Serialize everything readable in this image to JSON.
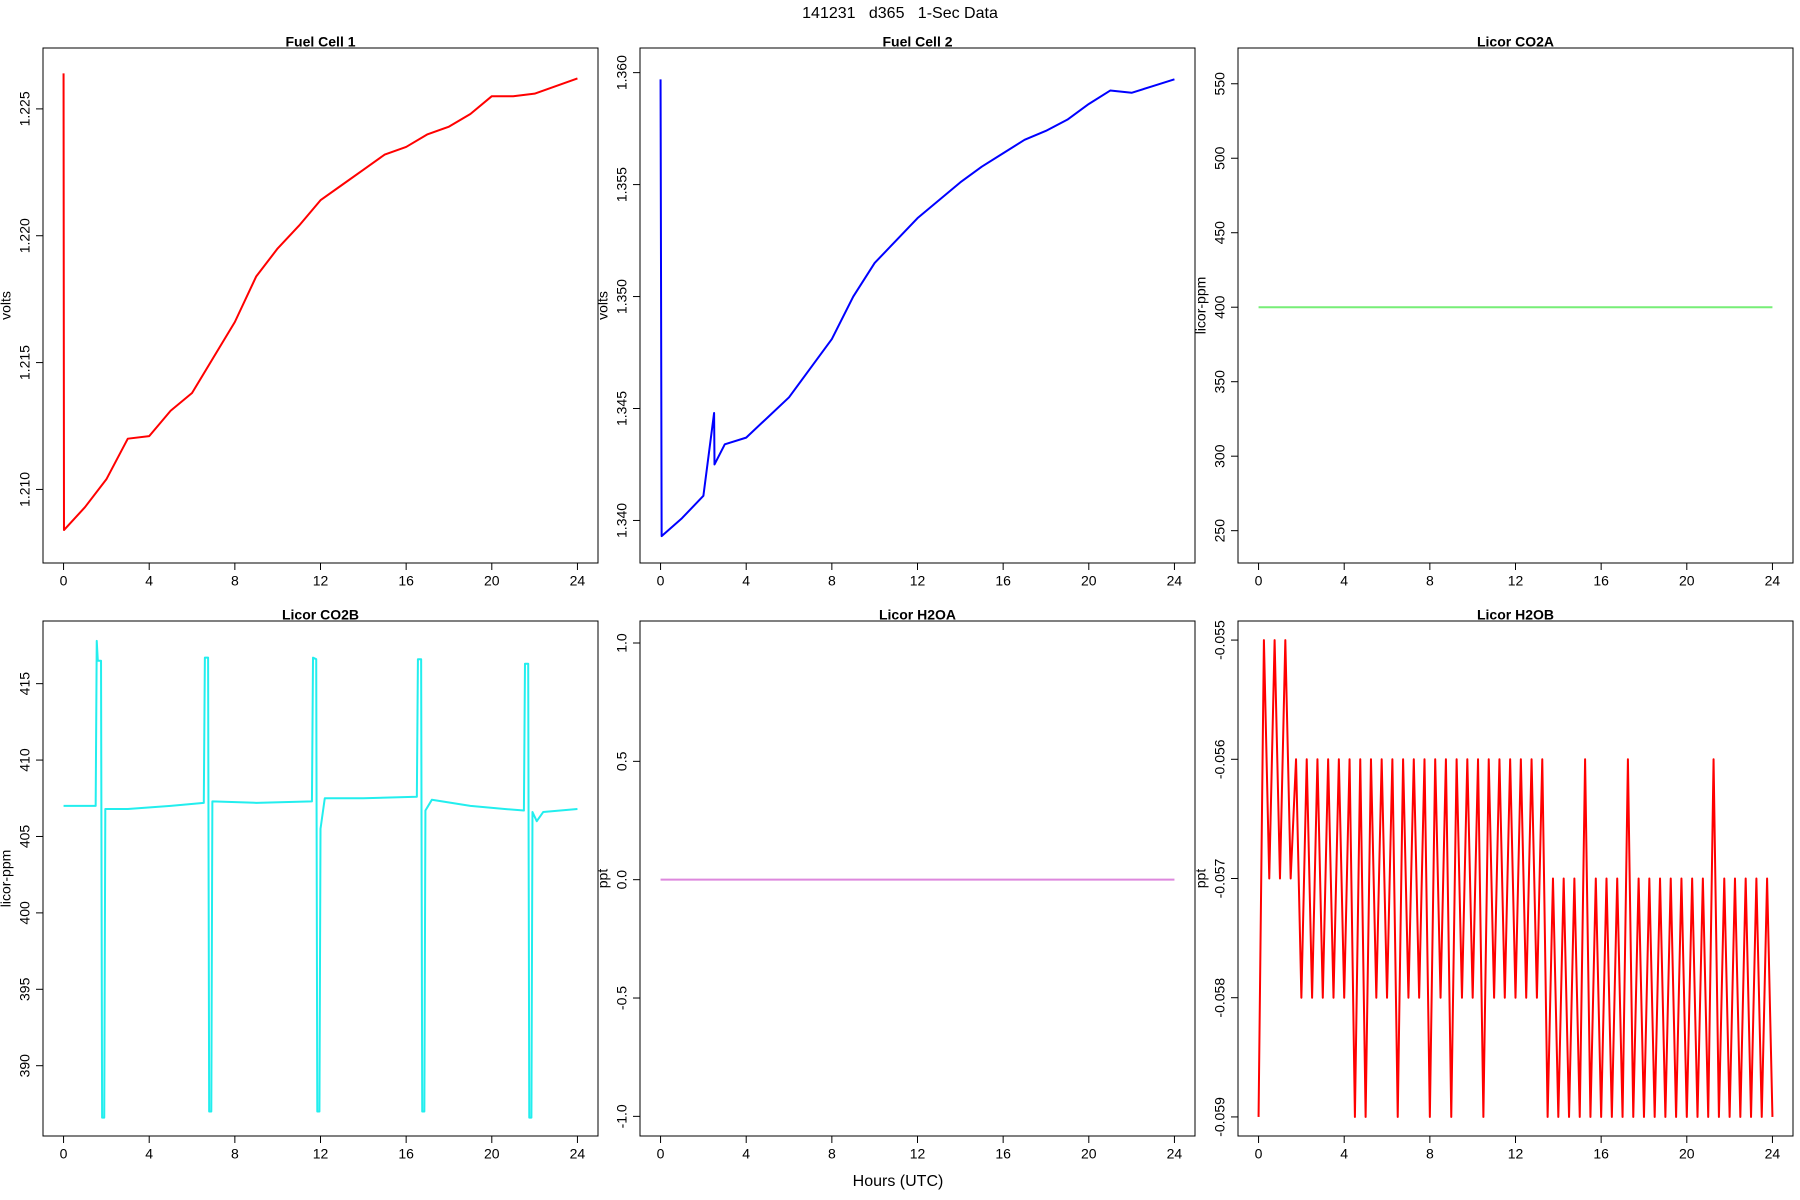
{
  "title": "141231   d365   1-Sec Data",
  "xlabel": "Hours (UTC)",
  "chart_data": [
    {
      "type": "line",
      "title": "Fuel Cell 1",
      "ylabel": "volts",
      "color": "#ff0000",
      "xlim": [
        -0.96,
        24.96
      ],
      "xticks": [
        0,
        4,
        8,
        12,
        16,
        20,
        24
      ],
      "ylim": [
        1.2071,
        1.2274
      ],
      "yticks": [
        {
          "value": 1.21,
          "label": "1.210"
        },
        1.215,
        {
          "value": 1.22,
          "label": "1.220"
        },
        1.225
      ],
      "x": [
        0,
        0.02,
        1,
        2,
        3,
        4,
        5,
        6,
        7,
        8,
        9,
        10,
        11,
        12,
        13,
        14,
        15,
        16,
        17,
        18,
        19,
        20,
        21,
        22,
        23,
        24
      ],
      "values": [
        1.2264,
        1.2084,
        1.2093,
        1.2104,
        1.212,
        1.2121,
        1.2131,
        1.2138,
        1.2152,
        1.2166,
        1.2184,
        1.2195,
        1.2204,
        1.2214,
        1.222,
        1.2226,
        1.2232,
        1.2235,
        1.224,
        1.2243,
        1.2248,
        1.2255,
        1.2255,
        1.2256,
        1.2259,
        1.2262
      ]
    },
    {
      "type": "line",
      "title": "Fuel Cell 2",
      "ylabel": "volts",
      "color": "#0000ff",
      "xlim": [
        -0.96,
        24.96
      ],
      "xticks": [
        0,
        4,
        8,
        12,
        16,
        20,
        24
      ],
      "ylim": [
        1.3381,
        1.3611
      ],
      "yticks": [
        {
          "value": 1.34,
          "label": "1.340"
        },
        1.345,
        {
          "value": 1.35,
          "label": "1.350"
        },
        1.355,
        {
          "value": 1.36,
          "label": "1.360"
        }
      ],
      "x": [
        0,
        0.05,
        1,
        2,
        2.5,
        2.52,
        3,
        4,
        5,
        6,
        7,
        8,
        9,
        10,
        11,
        12,
        13,
        14,
        15,
        16,
        17,
        18,
        19,
        20,
        21,
        22,
        23,
        24
      ],
      "values": [
        1.3597,
        1.3393,
        1.3401,
        1.3411,
        1.3448,
        1.3425,
        1.3434,
        1.3437,
        1.3446,
        1.3455,
        1.3468,
        1.3481,
        1.35,
        1.3515,
        1.3525,
        1.3535,
        1.3543,
        1.3551,
        1.3558,
        1.3564,
        1.357,
        1.3574,
        1.3579,
        1.3586,
        1.3592,
        1.3591,
        1.3594,
        1.3597
      ]
    },
    {
      "type": "line",
      "title": "Licor CO2A",
      "ylabel": "licor-ppm",
      "color": "#77ee77",
      "xlim": [
        -0.96,
        24.96
      ],
      "xticks": [
        0,
        4,
        8,
        12,
        16,
        20,
        24
      ],
      "ylim": [
        228.3,
        574
      ],
      "yticks": [
        250,
        300,
        350,
        400,
        450,
        500,
        550
      ],
      "x": [
        0,
        24
      ],
      "values": [
        400,
        400
      ]
    },
    {
      "type": "line",
      "title": "Licor CO2B",
      "ylabel": "licor-ppm",
      "color": "#22eeee",
      "xlim": [
        -0.96,
        24.96
      ],
      "xticks": [
        0,
        4,
        8,
        12,
        16,
        20,
        24
      ],
      "ylim": [
        385.4,
        419.1
      ],
      "yticks": [
        390,
        395,
        400,
        405,
        410,
        415
      ],
      "x": [
        0,
        1.5,
        1.55,
        1.6,
        1.75,
        1.8,
        1.9,
        1.95,
        3,
        5,
        6.55,
        6.6,
        6.75,
        6.8,
        6.9,
        6.95,
        9,
        11.6,
        11.65,
        11.8,
        11.85,
        11.95,
        12.0,
        12.2,
        14,
        16.5,
        16.55,
        16.7,
        16.75,
        16.85,
        16.9,
        17.2,
        19,
        20.6,
        21.5,
        21.55,
        21.7,
        21.75,
        21.85,
        21.9,
        22.1,
        22.4,
        24
      ],
      "values": [
        407.0,
        407.0,
        417.8,
        416.5,
        416.5,
        386.6,
        386.6,
        406.8,
        406.8,
        407.0,
        407.2,
        416.7,
        416.7,
        387.0,
        387.0,
        407.3,
        407.2,
        407.3,
        416.7,
        416.6,
        387.0,
        387.0,
        405.5,
        407.5,
        407.5,
        407.6,
        416.6,
        416.6,
        387.0,
        387.0,
        406.7,
        407.4,
        407.0,
        406.8,
        406.7,
        416.3,
        416.3,
        386.6,
        386.6,
        406.6,
        406.0,
        406.6,
        406.8
      ]
    },
    {
      "type": "line",
      "title": "Licor H2OA",
      "ylabel": "ppt",
      "color": "#dd88dd",
      "xlim": [
        -0.96,
        24.96
      ],
      "xticks": [
        0,
        4,
        8,
        12,
        16,
        20,
        24
      ],
      "ylim": [
        -1.083,
        1.093
      ],
      "yticks": [
        {
          "value": -1,
          "label": "-1.0"
        },
        -0.5,
        {
          "value": 0,
          "label": "0.0"
        },
        0.5,
        {
          "value": 1,
          "label": "1.0"
        }
      ],
      "x": [
        0,
        24
      ],
      "values": [
        0,
        0
      ]
    },
    {
      "type": "line",
      "title": "Licor H2OB",
      "ylabel": "ppt",
      "color": "#ff0000",
      "xlim": [
        -0.96,
        24.96
      ],
      "xticks": [
        0,
        4,
        8,
        12,
        16,
        20,
        24
      ],
      "ylim": [
        -0.05916,
        -0.05484
      ],
      "yticks": [
        -0.059,
        -0.058,
        -0.057,
        -0.056,
        -0.055
      ],
      "x": [
        0,
        0.25,
        0.5,
        0.75,
        1,
        1.25,
        1.5,
        1.75,
        2,
        2.25,
        2.5,
        2.75,
        3,
        3.25,
        3.5,
        3.75,
        4,
        4.25,
        4.5,
        4.75,
        5,
        5.25,
        5.5,
        5.75,
        6,
        6.25,
        6.5,
        6.75,
        7,
        7.25,
        7.5,
        7.75,
        8,
        8.25,
        8.5,
        8.75,
        9,
        9.25,
        9.5,
        9.75,
        10,
        10.25,
        10.5,
        10.75,
        11,
        11.25,
        11.5,
        11.75,
        12,
        12.25,
        12.5,
        12.75,
        13,
        13.25,
        13.5,
        13.75,
        14,
        14.25,
        14.5,
        14.75,
        15,
        15.25,
        15.5,
        15.75,
        16,
        16.25,
        16.5,
        16.75,
        17,
        17.25,
        17.5,
        17.75,
        18,
        18.25,
        18.5,
        18.75,
        19,
        19.25,
        19.5,
        19.75,
        20,
        20.25,
        20.5,
        20.75,
        21,
        21.25,
        21.5,
        21.75,
        22,
        22.25,
        22.5,
        22.75,
        23,
        23.25,
        23.5,
        23.75,
        24
      ],
      "values": [
        -0.059,
        -0.055,
        -0.057,
        -0.055,
        -0.057,
        -0.055,
        -0.057,
        -0.056,
        -0.058,
        -0.056,
        -0.058,
        -0.056,
        -0.058,
        -0.056,
        -0.058,
        -0.056,
        -0.058,
        -0.056,
        -0.059,
        -0.056,
        -0.059,
        -0.056,
        -0.058,
        -0.056,
        -0.058,
        -0.056,
        -0.059,
        -0.056,
        -0.058,
        -0.056,
        -0.058,
        -0.056,
        -0.059,
        -0.056,
        -0.058,
        -0.056,
        -0.059,
        -0.056,
        -0.058,
        -0.056,
        -0.058,
        -0.056,
        -0.059,
        -0.056,
        -0.058,
        -0.056,
        -0.058,
        -0.056,
        -0.058,
        -0.056,
        -0.058,
        -0.056,
        -0.058,
        -0.056,
        -0.059,
        -0.057,
        -0.059,
        -0.057,
        -0.059,
        -0.057,
        -0.059,
        -0.056,
        -0.059,
        -0.057,
        -0.059,
        -0.057,
        -0.059,
        -0.057,
        -0.059,
        -0.056,
        -0.059,
        -0.057,
        -0.059,
        -0.057,
        -0.059,
        -0.057,
        -0.059,
        -0.057,
        -0.059,
        -0.057,
        -0.059,
        -0.057,
        -0.059,
        -0.057,
        -0.059,
        -0.056,
        -0.059,
        -0.057,
        -0.059,
        -0.057,
        -0.059,
        -0.057,
        -0.059,
        -0.057,
        -0.059,
        -0.057,
        -0.059
      ]
    }
  ]
}
